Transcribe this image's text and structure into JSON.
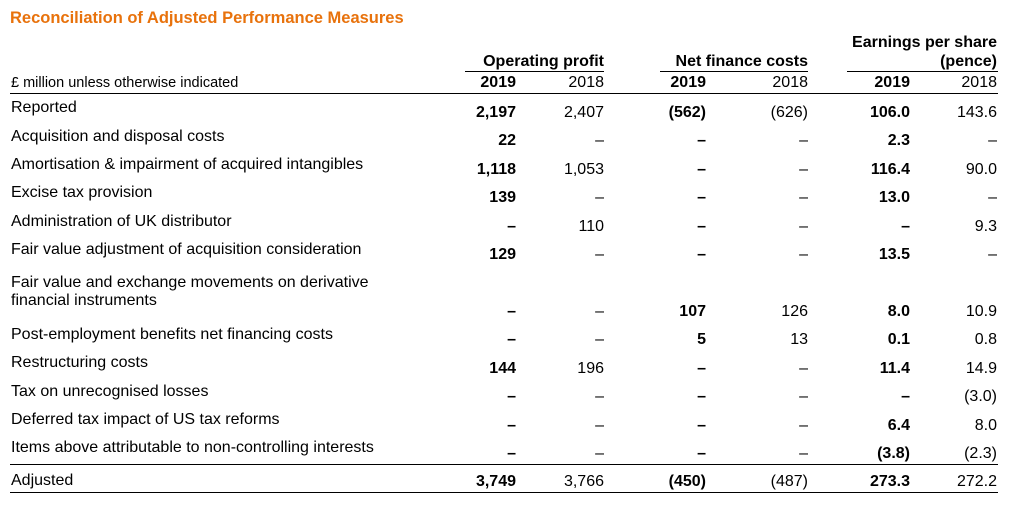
{
  "title": "Reconciliation of Adjusted Performance Measures",
  "unit_label": "£ million unless otherwise indicated",
  "groups": [
    {
      "name": "Operating profit",
      "years": [
        "2019",
        "2018"
      ]
    },
    {
      "name": "Net finance costs",
      "years": [
        "2019",
        "2018"
      ]
    },
    {
      "name_line1": "Earnings per share",
      "name_line2": "(pence)",
      "years": [
        "2019",
        "2018"
      ]
    }
  ],
  "rows": [
    {
      "label": "Reported",
      "values": [
        "2,197",
        "2,407",
        "(562)",
        "(626)",
        "106.0",
        "143.6"
      ]
    },
    {
      "label": "Acquisition and disposal costs",
      "values": [
        "22",
        "–",
        "–",
        "–",
        "2.3",
        "–"
      ]
    },
    {
      "label": "Amortisation & impairment of acquired intangibles",
      "values": [
        "1,118",
        "1,053",
        "–",
        "–",
        "116.4",
        "90.0"
      ]
    },
    {
      "label": "Excise tax provision",
      "values": [
        "139",
        "–",
        "–",
        "–",
        "13.0",
        "–"
      ]
    },
    {
      "label": "Administration of UK distributor",
      "values": [
        "–",
        "110",
        "–",
        "–",
        "–",
        "9.3"
      ]
    },
    {
      "label": "Fair value adjustment of acquisition consideration",
      "values": [
        "129",
        "–",
        "–",
        "–",
        "13.5",
        "–"
      ]
    },
    {
      "label_line1": "Fair value and exchange movements on derivative",
      "label_line2": "financial instruments",
      "values": [
        "–",
        "–",
        "107",
        "126",
        "8.0",
        "10.9"
      ]
    },
    {
      "label": "Post-employment benefits net financing costs",
      "values": [
        "–",
        "–",
        "5",
        "13",
        "0.1",
        "0.8"
      ]
    },
    {
      "label": "Restructuring costs",
      "values": [
        "144",
        "196",
        "–",
        "–",
        "11.4",
        "14.9"
      ]
    },
    {
      "label": "Tax on unrecognised losses",
      "values": [
        "–",
        "–",
        "–",
        "–",
        "–",
        "(3.0)"
      ]
    },
    {
      "label": "Deferred tax impact of US tax reforms",
      "values": [
        "–",
        "–",
        "–",
        "–",
        "6.4",
        "8.0"
      ]
    },
    {
      "label": "Items above attributable to non-controlling interests",
      "values": [
        "–",
        "–",
        "–",
        "–",
        "(3.8)",
        "(2.3)"
      ]
    },
    {
      "label": "Adjusted",
      "values": [
        "3,749",
        "3,766",
        "(450)",
        "(487)",
        "273.3",
        "272.2"
      ]
    }
  ]
}
